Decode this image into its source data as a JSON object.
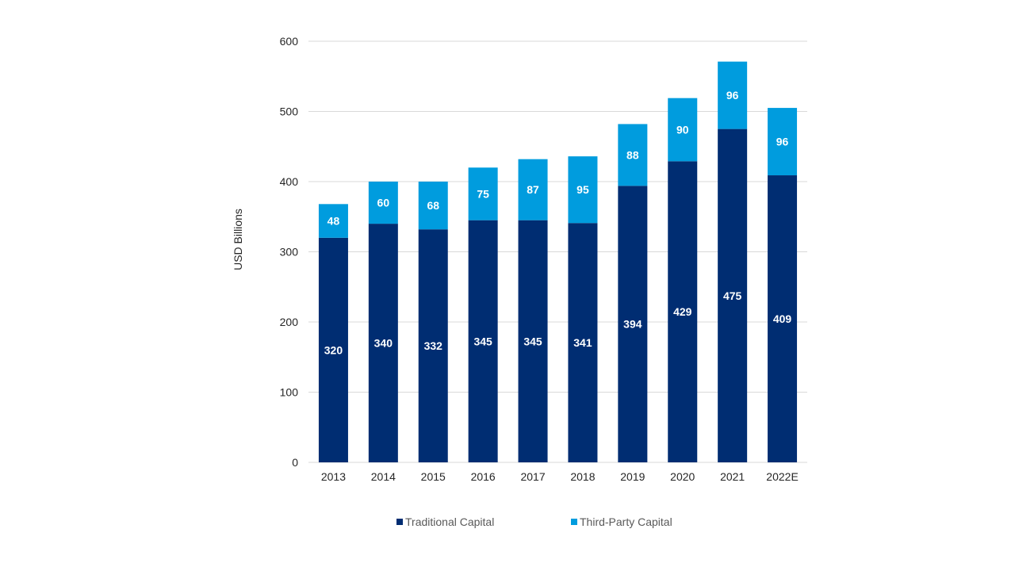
{
  "chart_data": {
    "type": "bar",
    "stacked": true,
    "title": "",
    "xlabel": "",
    "ylabel": "USD Billions",
    "ylim": [
      0,
      600
    ],
    "yticks": [
      0,
      100,
      200,
      300,
      400,
      500,
      600
    ],
    "grid": true,
    "legend_position": "bottom",
    "categories": [
      "2013",
      "2014",
      "2015",
      "2016",
      "2017",
      "2018",
      "2019",
      "2020",
      "2021",
      "2022E"
    ],
    "series": [
      {
        "name": "Traditional Capital",
        "color": "#002d72",
        "values": [
          320,
          340,
          332,
          345,
          345,
          341,
          394,
          429,
          475,
          409
        ]
      },
      {
        "name": "Third-Party Capital",
        "color": "#009cde",
        "values": [
          48,
          60,
          68,
          75,
          87,
          95,
          88,
          90,
          96,
          96
        ]
      }
    ]
  }
}
